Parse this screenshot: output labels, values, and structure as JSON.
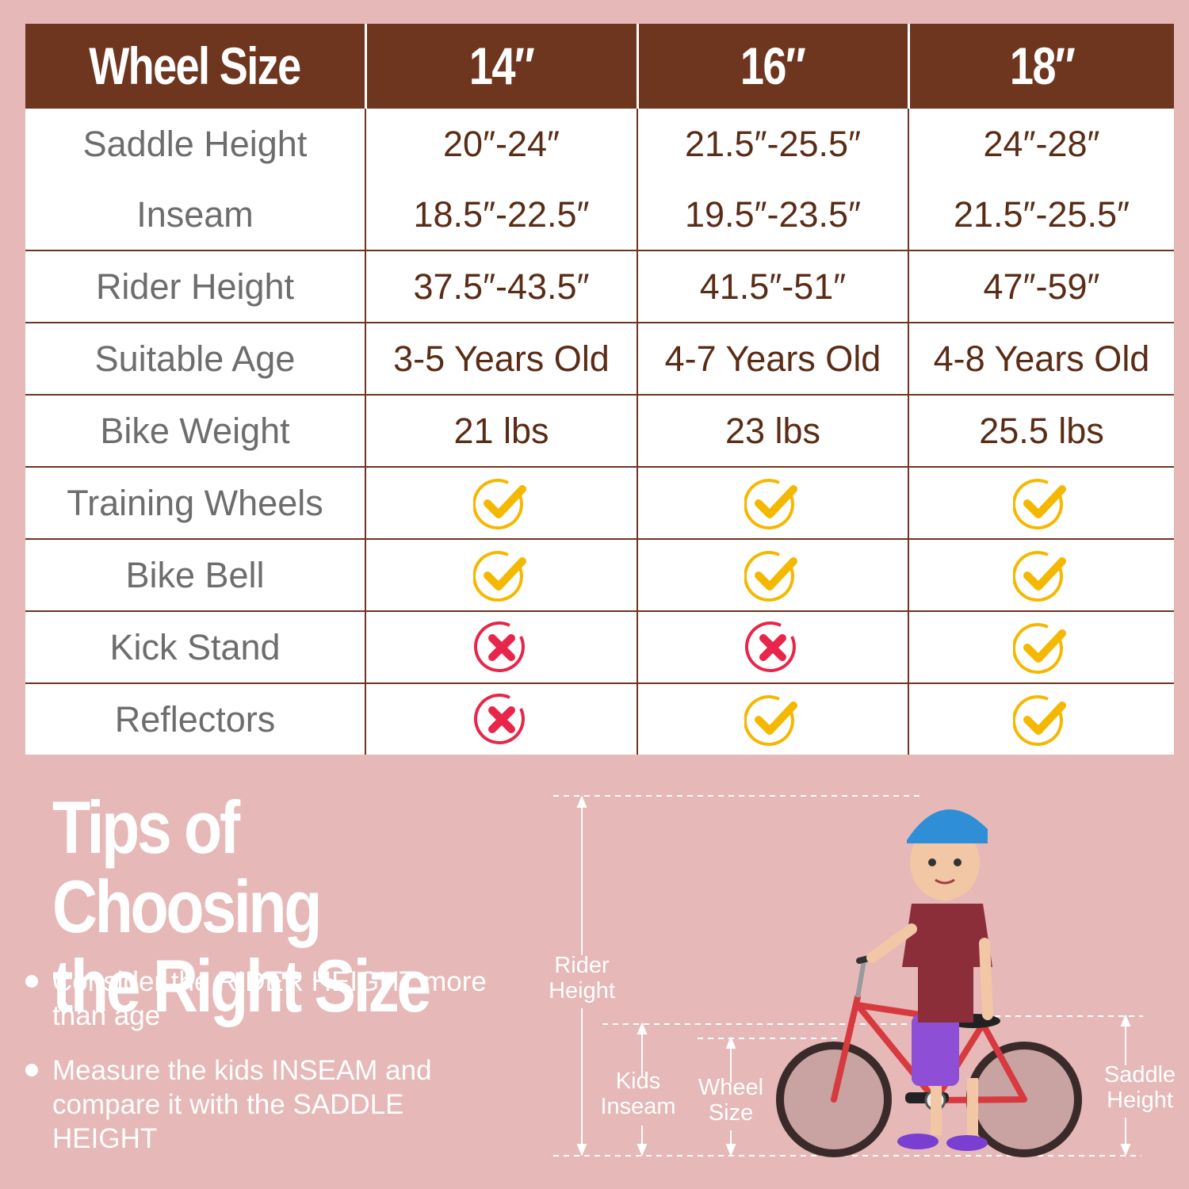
{
  "table": {
    "header": [
      "Wheel Size",
      "14″",
      "16″",
      "18″"
    ],
    "rows": [
      {
        "label": "Saddle Height",
        "values": [
          "20″-24″",
          "21.5″-25.5″",
          "24″-28″"
        ]
      },
      {
        "label": "Inseam",
        "values": [
          "18.5″-22.5″",
          "19.5″-23.5″",
          "21.5″-25.5″"
        ]
      },
      {
        "label": "Rider Height",
        "values": [
          "37.5″-43.5″",
          "41.5″-51″",
          "47″-59″"
        ]
      },
      {
        "label": "Suitable Age",
        "values": [
          "3-5 Years Old",
          "4-7 Years Old",
          "4-8 Years Old"
        ]
      },
      {
        "label": "Bike Weight",
        "values": [
          "21 lbs",
          "23 lbs",
          "25.5 lbs"
        ]
      },
      {
        "label": "Training Wheels",
        "values": [
          true,
          true,
          true
        ]
      },
      {
        "label": "Bike Bell",
        "values": [
          true,
          true,
          true
        ]
      },
      {
        "label": "Kick Stand",
        "values": [
          false,
          false,
          true
        ]
      },
      {
        "label": "Reflectors",
        "values": [
          false,
          true,
          true
        ]
      }
    ]
  },
  "tips": {
    "title_line1": "Tips of Choosing",
    "title_line2": "the Right Size",
    "items": [
      "Consider the RIDER HEIGHT more than age",
      "Measure the kids INSEAM and compare it with the SADDLE HEIGHT"
    ]
  },
  "diagram": {
    "rider_height_line1": "Rider",
    "rider_height_line2": "Height",
    "inseam_line1": "Kids",
    "inseam_line2": "Inseam",
    "wheel_line1": "Wheel",
    "wheel_line2": "Size",
    "saddle_line1": "Saddle",
    "saddle_line2": "Height"
  },
  "colors": {
    "background": "#e6b8b8",
    "header": "#6e351f",
    "check": "#f5b800",
    "cross": "#e8254a"
  }
}
